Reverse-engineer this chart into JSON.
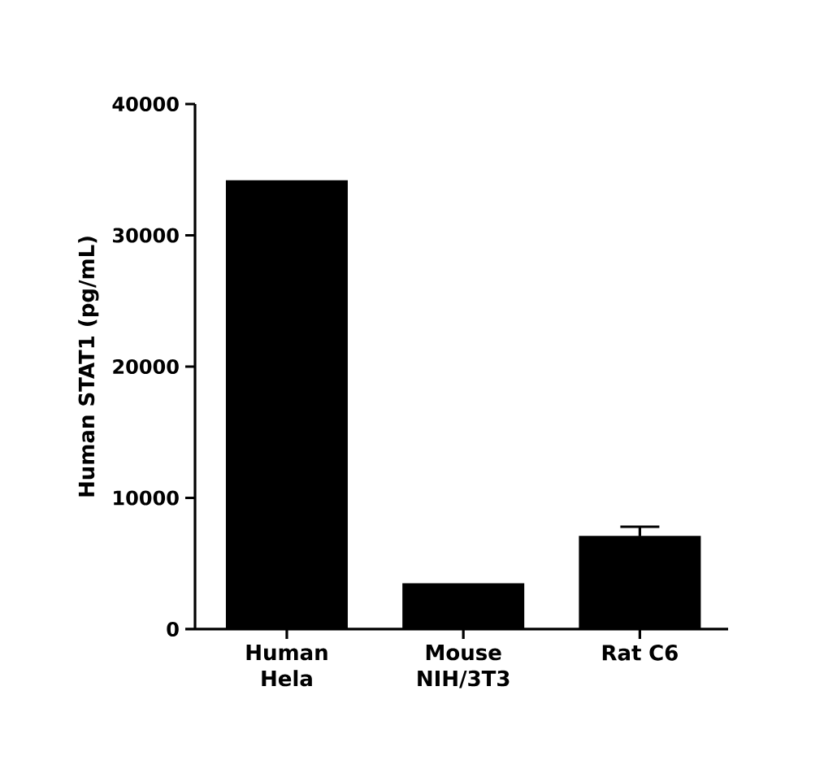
{
  "chart_data": {
    "type": "bar",
    "ylabel": "Human STAT1 (pg/mL)",
    "categories": [
      "Human Hela",
      "Mouse NIH/3T3",
      "Rat C6"
    ],
    "values": [
      34200,
      3500,
      7100
    ],
    "errors": [
      null,
      null,
      700
    ],
    "color": "#000000",
    "ylim": [
      0,
      40000
    ],
    "yticks": [
      0,
      10000,
      20000,
      30000,
      40000
    ]
  }
}
